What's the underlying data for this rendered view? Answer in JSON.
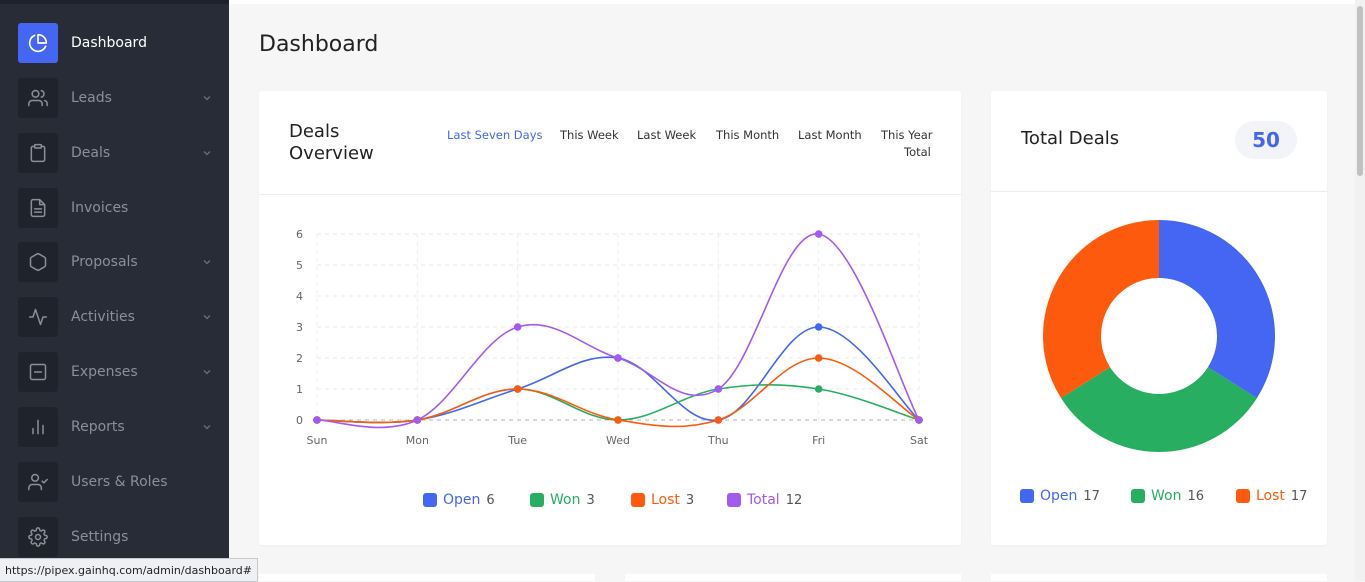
{
  "sidebar": {
    "items": [
      {
        "label": "Dashboard",
        "icon": "pie-chart-icon",
        "active": true,
        "chevron": false
      },
      {
        "label": "Leads",
        "icon": "users-icon",
        "chevron": true
      },
      {
        "label": "Deals",
        "icon": "clipboard-icon",
        "chevron": true
      },
      {
        "label": "Invoices",
        "icon": "file-text-icon",
        "chevron": false
      },
      {
        "label": "Proposals",
        "icon": "hexagon-icon",
        "chevron": true
      },
      {
        "label": "Activities",
        "icon": "activity-icon",
        "chevron": true
      },
      {
        "label": "Expenses",
        "icon": "minus-square-icon",
        "chevron": true
      },
      {
        "label": "Reports",
        "icon": "bar-chart-icon",
        "chevron": true
      },
      {
        "label": "Users & Roles",
        "icon": "user-check-icon",
        "chevron": false
      },
      {
        "label": "Settings",
        "icon": "settings-icon",
        "chevron": false
      }
    ]
  },
  "statusbar": {
    "url": "https://pipex.gainhq.com/admin/dashboard#"
  },
  "page": {
    "title": "Dashboard"
  },
  "deals_overview": {
    "title": "Deals Overview",
    "filters": [
      "Last Seven Days",
      "This Week",
      "Last Week",
      "This Month",
      "Last Month",
      "This Year",
      "Total"
    ],
    "active_filter": "Last Seven Days"
  },
  "total_deals": {
    "title": "Total Deals",
    "count": "50"
  },
  "colors": {
    "open": "#4466f2",
    "won": "#27ae60",
    "lost": "#fe5a0e",
    "total": "#a35af0",
    "accent": "#4466f2"
  },
  "chart_data": [
    {
      "type": "line",
      "categories": [
        "Sun",
        "Mon",
        "Tue",
        "Wed",
        "Thu",
        "Fri",
        "Sat"
      ],
      "ylim": [
        0,
        6
      ],
      "yticks": [
        "0",
        "1",
        "2",
        "3",
        "4",
        "5",
        "6"
      ],
      "grid": true,
      "legend_position": "bottom",
      "series": [
        {
          "name": "Open",
          "count": "6",
          "color": "#4466f2",
          "values": [
            0,
            0,
            1,
            2,
            0,
            3,
            0
          ]
        },
        {
          "name": "Won",
          "count": "3",
          "color": "#27ae60",
          "values": [
            0,
            0,
            1,
            0,
            1,
            1,
            0
          ]
        },
        {
          "name": "Lost",
          "count": "3",
          "color": "#fe5a0e",
          "values": [
            0,
            0,
            1,
            0,
            0,
            2,
            0
          ]
        },
        {
          "name": "Total",
          "count": "12",
          "color": "#a35af0",
          "values": [
            0,
            0,
            3,
            2,
            1,
            6,
            0
          ]
        }
      ]
    },
    {
      "type": "pie",
      "donut": true,
      "legend_position": "bottom",
      "slices": [
        {
          "name": "Open",
          "count": "17",
          "value": 17,
          "color": "#4466f2"
        },
        {
          "name": "Won",
          "count": "16",
          "value": 16,
          "color": "#27ae60"
        },
        {
          "name": "Lost",
          "count": "17",
          "value": 17,
          "color": "#fe5a0e"
        }
      ]
    }
  ]
}
